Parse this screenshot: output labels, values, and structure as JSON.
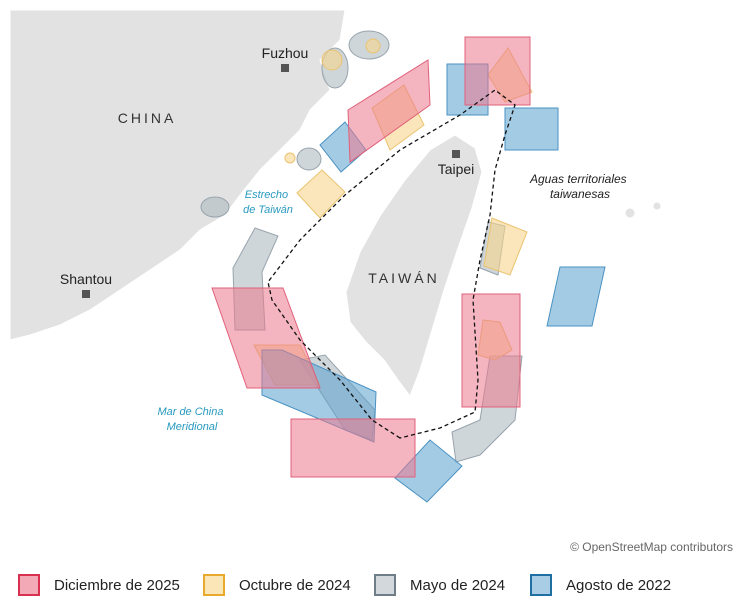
{
  "map": {
    "places": {
      "fuzhou": "Fuzhou",
      "china": "CHINA",
      "strait": [
        "Estrecho",
        "de Taiwán"
      ],
      "taipei": "Taipei",
      "waters": [
        "Aguas territoriales",
        "taiwanesas"
      ],
      "shantou": "Shantou",
      "taiwan": "TAIWÁN",
      "sea": [
        "Mar de China",
        "Meridional"
      ]
    },
    "attribution": "© OpenStreetMap contributors"
  },
  "legend": [
    "Diciembre de 2025",
    "Octubre de 2024",
    "Mayo de 2024",
    "Agosto de 2022"
  ]
}
